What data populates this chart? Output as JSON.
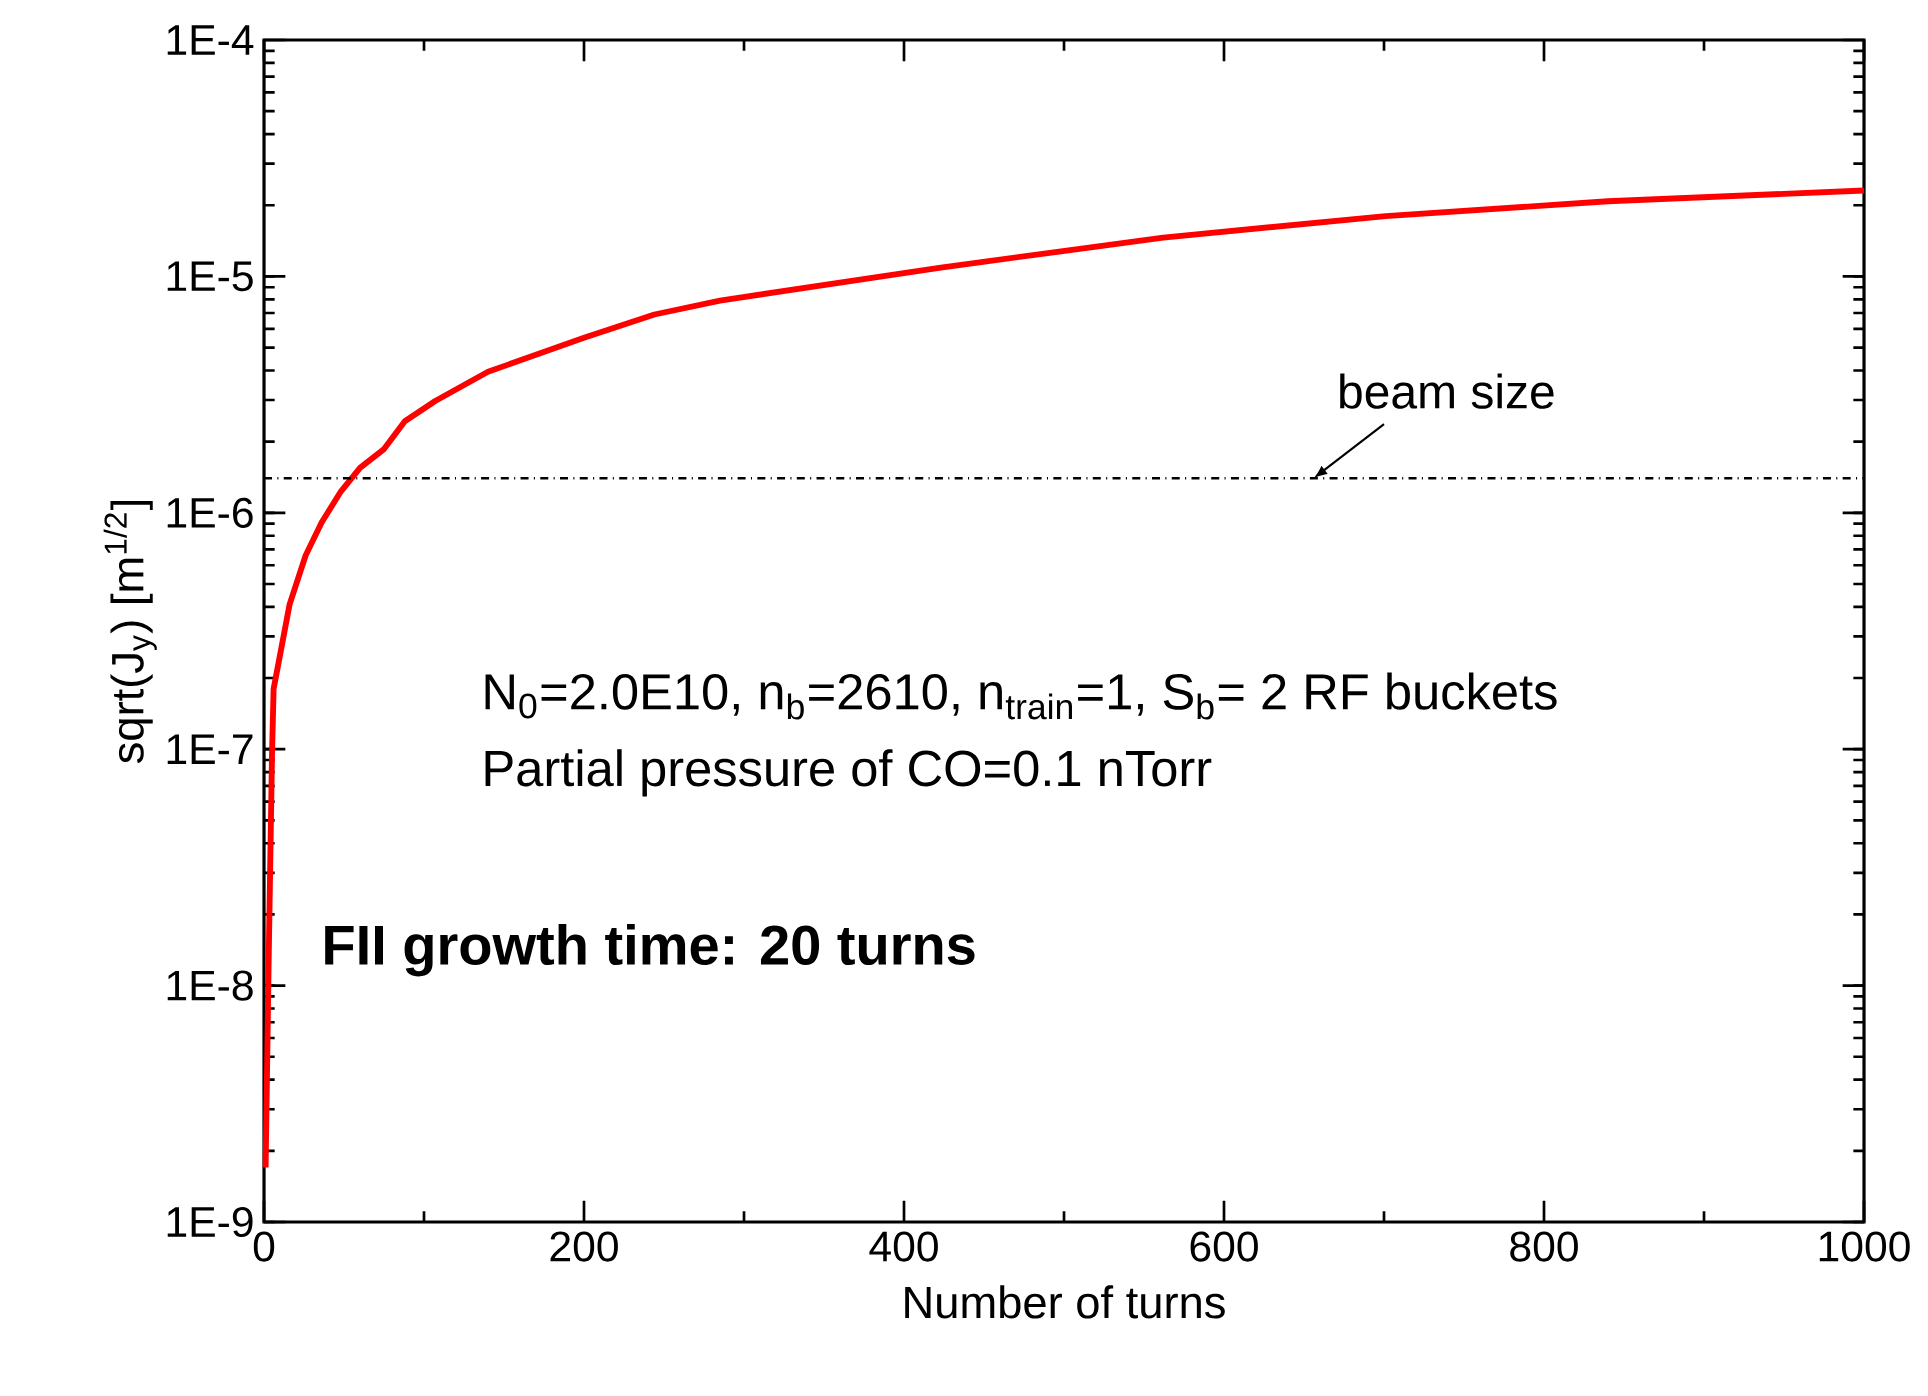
{
  "chart_data": {
    "type": "line",
    "xlabel": "Number of turns",
    "ylabel": "sqrt(J$_{y}$) [m$^{1/2}$]",
    "log": "y",
    "xlim": [
      0,
      1000
    ],
    "xticks": [
      0,
      200,
      400,
      600,
      800,
      1000
    ],
    "ylim": [
      1e-09,
      0.0001
    ],
    "yticks": [
      {
        "value": 1e-09,
        "label": "1E-9"
      },
      {
        "value": 1e-08,
        "label": "1E-8"
      },
      {
        "value": 1e-07,
        "label": "1E-7"
      },
      {
        "value": 1e-06,
        "label": "1E-6"
      },
      {
        "value": 1e-05,
        "label": "1E-5"
      },
      {
        "value": 0.0001,
        "label": "1E-4"
      }
    ],
    "marker": "none",
    "line_style": "solid",
    "series": [
      {
        "color": "#ff0000",
        "x": [
          1,
          3,
          5,
          6,
          10,
          16,
          26,
          36,
          48,
          60,
          75,
          88,
          107,
          140,
          200,
          244,
          285,
          423,
          562,
          701,
          840,
          1000
        ],
        "values": [
          1.7e-09,
          1.4e-08,
          9.5e-08,
          1.8e-07,
          2.5e-07,
          4.1e-07,
          6.6e-07,
          9.1e-07,
          1.23e-06,
          1.55e-06,
          1.86e-06,
          2.44e-06,
          2.97e-06,
          3.95e-06,
          5.5e-06,
          6.9e-06,
          7.9e-06,
          1.09e-05,
          1.46e-05,
          1.8e-05,
          2.08e-05,
          2.31e-05
        ]
      }
    ],
    "ref_lines": [
      {
        "axis": "y",
        "value": 1.4e-06,
        "label": "beam size",
        "line_style": "dashdot",
        "color": "#000000"
      }
    ],
    "annotations": [
      "N$_{0}$=2.0E10, n$_{b}$=2610, n$_{train}$=1, S$_{b}$= 2 RF buckets",
      "Partial pressure of CO=0.1 nTorr",
      "**FII growth time: 20 turns**"
    ]
  }
}
